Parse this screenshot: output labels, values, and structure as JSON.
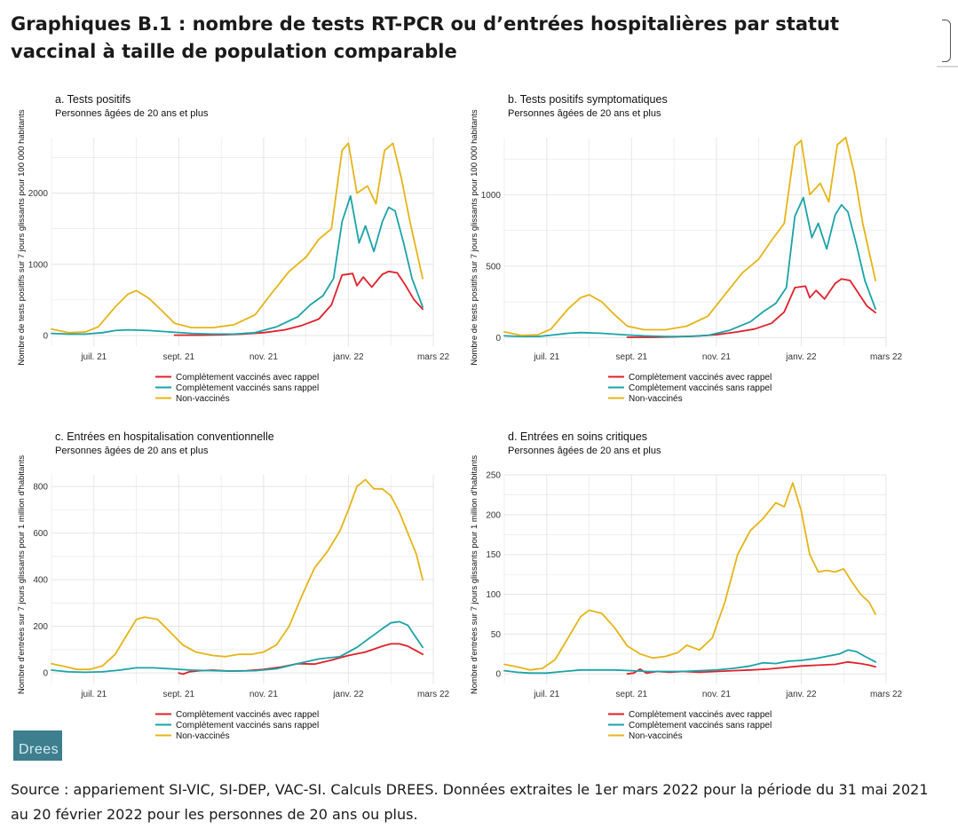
{
  "document": {
    "title": "Graphiques B.1 : nombre de tests RT-PCR ou d’entrées hospitalières par statut vaccinal à taille de population comparable",
    "source": "Source : appariement SI-VIC, SI-DEP, VAC-SI. Calculs DREES. Données extraites le 1er mars 2022 pour la période du 31 mai 2021 au 20 février 2022 pour les personnes de 20 ans ou plus.",
    "logo_text": "Drees"
  },
  "colors": {
    "rappel": "#e0202a",
    "sans_rappel": "#1aa3a8",
    "non_vaccines": "#e6b418",
    "grid": "#e5e5e5"
  },
  "chart_data": [
    {
      "id": "a",
      "type": "line",
      "title": "a. Tests positifs",
      "subtitle": "Personnes âgées de 20 ans et plus",
      "ylabel": "Nombre de tests positifs sur 7 jours glissants pour 100 000 habitants",
      "x_ticks": [
        "juil. 21",
        "sept. 21",
        "nov. 21",
        "janv. 22",
        "mars 22"
      ],
      "y_ticks": [
        0,
        1000,
        2000
      ],
      "xlim": [
        0,
        9
      ],
      "ylim": [
        -150,
        2780
      ],
      "legend": [
        "Complètement vaccinés avec rappel",
        "Complètement vaccinés sans rappel",
        "Non-vaccinés"
      ],
      "legend_position": "bottom",
      "series": [
        {
          "name": "Complètement vaccinés avec rappel",
          "color_key": "rappel",
          "x": [
            2.9,
            3.5,
            4.0,
            4.5,
            5.0,
            5.5,
            5.9,
            6.3,
            6.6,
            6.85,
            7.1,
            7.2,
            7.35,
            7.55,
            7.8,
            7.95,
            8.15,
            8.35,
            8.55,
            8.75
          ],
          "y": [
            5,
            5,
            10,
            20,
            40,
            80,
            140,
            230,
            430,
            850,
            870,
            700,
            820,
            680,
            860,
            900,
            880,
            700,
            500,
            370
          ]
        },
        {
          "name": "Complètement vaccinés sans rappel",
          "color_key": "sans_rappel",
          "x": [
            0.0,
            0.4,
            0.8,
            1.2,
            1.5,
            1.8,
            2.3,
            2.8,
            3.3,
            3.8,
            4.3,
            4.8,
            5.3,
            5.8,
            6.1,
            6.4,
            6.65,
            6.85,
            7.05,
            7.25,
            7.4,
            7.6,
            7.8,
            7.95,
            8.1,
            8.3,
            8.5,
            8.75
          ],
          "y": [
            30,
            20,
            20,
            40,
            70,
            80,
            70,
            50,
            30,
            20,
            20,
            40,
            120,
            260,
            430,
            560,
            800,
            1600,
            1960,
            1300,
            1540,
            1180,
            1600,
            1800,
            1750,
            1300,
            800,
            400
          ]
        },
        {
          "name": "Non-vaccinés",
          "color_key": "non_vaccines",
          "x": [
            0.0,
            0.4,
            0.8,
            1.1,
            1.5,
            1.8,
            2.0,
            2.3,
            2.6,
            2.9,
            3.3,
            3.8,
            4.3,
            4.8,
            5.2,
            5.6,
            6.0,
            6.3,
            6.6,
            6.85,
            7.0,
            7.2,
            7.45,
            7.65,
            7.85,
            8.05,
            8.25,
            8.45,
            8.75
          ],
          "y": [
            90,
            40,
            50,
            120,
            400,
            580,
            630,
            520,
            350,
            170,
            110,
            110,
            150,
            290,
            600,
            900,
            1100,
            1350,
            1500,
            2600,
            2700,
            2000,
            2100,
            1850,
            2600,
            2700,
            2200,
            1600,
            800
          ]
        }
      ]
    },
    {
      "id": "b",
      "type": "line",
      "title": "b. Tests positifs symptomatiques",
      "subtitle": "Personnes âgées de 20 ans et plus",
      "ylabel": "Nombre de tests positifs sur 7 jours glissants pour 100 000 habitants",
      "x_ticks": [
        "juil. 21",
        "sept. 21",
        "nov. 21",
        "janv. 22",
        "mars 22"
      ],
      "y_ticks": [
        0,
        500,
        1000
      ],
      "xlim": [
        0,
        9
      ],
      "ylim": [
        -60,
        1400
      ],
      "legend": [
        "Complètement vaccinés avec rappel",
        "Complètement vaccinés sans rappel",
        "Non-vaccinés"
      ],
      "legend_position": "bottom",
      "series": [
        {
          "name": "Complètement vaccinés avec rappel",
          "color_key": "rappel",
          "x": [
            2.9,
            3.5,
            4.0,
            4.5,
            5.0,
            5.5,
            5.9,
            6.3,
            6.6,
            6.85,
            7.1,
            7.2,
            7.35,
            7.55,
            7.8,
            7.95,
            8.15,
            8.35,
            8.55,
            8.75
          ],
          "y": [
            2,
            2,
            5,
            10,
            20,
            40,
            60,
            100,
            180,
            350,
            360,
            280,
            330,
            270,
            380,
            410,
            400,
            310,
            220,
            175
          ]
        },
        {
          "name": "Complètement vaccinés sans rappel",
          "color_key": "sans_rappel",
          "x": [
            0.0,
            0.4,
            0.8,
            1.2,
            1.5,
            1.8,
            2.3,
            2.8,
            3.3,
            3.8,
            4.3,
            4.8,
            5.3,
            5.8,
            6.1,
            6.4,
            6.65,
            6.85,
            7.05,
            7.25,
            7.4,
            7.6,
            7.8,
            7.95,
            8.1,
            8.3,
            8.5,
            8.75
          ],
          "y": [
            12,
            8,
            8,
            20,
            30,
            35,
            30,
            20,
            12,
            8,
            8,
            15,
            50,
            110,
            180,
            240,
            350,
            850,
            980,
            700,
            800,
            620,
            860,
            930,
            880,
            650,
            400,
            200
          ]
        },
        {
          "name": "Non-vaccinés",
          "color_key": "non_vaccines",
          "x": [
            0.0,
            0.4,
            0.8,
            1.1,
            1.5,
            1.8,
            2.0,
            2.3,
            2.6,
            2.9,
            3.3,
            3.8,
            4.3,
            4.8,
            5.2,
            5.6,
            6.0,
            6.3,
            6.6,
            6.85,
            7.0,
            7.2,
            7.45,
            7.65,
            7.85,
            8.05,
            8.25,
            8.45,
            8.75
          ],
          "y": [
            40,
            15,
            20,
            60,
            200,
            280,
            300,
            250,
            160,
            80,
            55,
            55,
            80,
            150,
            300,
            450,
            550,
            680,
            800,
            1340,
            1380,
            1000,
            1080,
            950,
            1350,
            1400,
            1150,
            800,
            400
          ]
        }
      ]
    },
    {
      "id": "c",
      "type": "line",
      "title": "c. Entrées en hospitalisation conventionnelle",
      "subtitle": "Personnes âgées de 20 ans et plus",
      "ylabel": "Nombre d'entrées sur 7 jours glissants pour 1 million d'habitants",
      "x_ticks": [
        "juil. 21",
        "sept. 21",
        "nov. 21",
        "janv. 22",
        "mars 22"
      ],
      "y_ticks": [
        0,
        200,
        400,
        600,
        800
      ],
      "xlim": [
        0,
        9
      ],
      "ylim": [
        -45,
        850
      ],
      "legend": [
        "Complètement vaccinés avec rappel",
        "Complètement vaccinés sans rappel",
        "Non-vaccinés"
      ],
      "legend_position": "bottom",
      "series": [
        {
          "name": "Complètement vaccinés avec rappel",
          "color_key": "rappel",
          "x": [
            3.0,
            3.1,
            3.25,
            3.5,
            3.8,
            4.2,
            4.6,
            5.0,
            5.4,
            5.8,
            6.2,
            6.6,
            7.0,
            7.4,
            7.8,
            8.0,
            8.2,
            8.4,
            8.55,
            8.75
          ],
          "y": [
            0,
            -5,
            5,
            10,
            12,
            8,
            10,
            15,
            25,
            40,
            38,
            55,
            75,
            90,
            115,
            125,
            125,
            115,
            100,
            80
          ]
        },
        {
          "name": "Complètement vaccinés sans rappel",
          "color_key": "sans_rappel",
          "x": [
            0.0,
            0.4,
            0.8,
            1.2,
            1.6,
            2.0,
            2.4,
            2.8,
            3.3,
            3.8,
            4.3,
            4.8,
            5.3,
            5.8,
            6.3,
            6.8,
            7.2,
            7.5,
            7.8,
            8.0,
            8.2,
            8.4,
            8.6,
            8.75
          ],
          "y": [
            12,
            5,
            3,
            5,
            12,
            22,
            22,
            18,
            12,
            10,
            8,
            10,
            18,
            40,
            60,
            70,
            110,
            150,
            190,
            215,
            220,
            205,
            150,
            110
          ]
        },
        {
          "name": "Non-vaccinés",
          "color_key": "non_vaccines",
          "x": [
            0.0,
            0.3,
            0.6,
            0.9,
            1.2,
            1.5,
            1.8,
            2.0,
            2.2,
            2.5,
            2.8,
            3.1,
            3.4,
            3.8,
            4.1,
            4.4,
            4.7,
            5.0,
            5.3,
            5.6,
            5.9,
            6.2,
            6.5,
            6.8,
            7.0,
            7.2,
            7.4,
            7.6,
            7.8,
            8.0,
            8.2,
            8.4,
            8.6,
            8.75
          ],
          "y": [
            40,
            28,
            15,
            15,
            30,
            80,
            170,
            230,
            240,
            230,
            175,
            120,
            90,
            75,
            70,
            80,
            80,
            90,
            120,
            200,
            330,
            450,
            520,
            610,
            700,
            800,
            830,
            790,
            790,
            760,
            690,
            600,
            510,
            400
          ]
        }
      ]
    },
    {
      "id": "d",
      "type": "line",
      "title": "d. Entrées en soins critiques",
      "subtitle": "Personnes âgées de 20 ans et plus",
      "ylabel": "Nombre d'entrées sur 7 jours glissants pour 1 million d'habitants",
      "x_ticks": [
        "juil. 21",
        "sept. 21",
        "nov. 21",
        "janv. 22",
        "mars 22"
      ],
      "y_ticks": [
        0,
        50,
        100,
        150,
        200,
        250
      ],
      "xlim": [
        0,
        9
      ],
      "ylim": [
        -12,
        250
      ],
      "legend": [
        "Complètement vaccinés avec rappel",
        "Complètement vaccinés sans rappel",
        "Non-vaccinés"
      ],
      "legend_position": "bottom",
      "series": [
        {
          "name": "Complètement vaccinés avec rappel",
          "color_key": "rappel",
          "x": [
            2.9,
            3.05,
            3.2,
            3.35,
            3.6,
            3.9,
            4.2,
            4.6,
            5.0,
            5.4,
            5.8,
            6.2,
            6.6,
            7.0,
            7.4,
            7.8,
            8.1,
            8.4,
            8.6,
            8.75
          ],
          "y": [
            0,
            1,
            6,
            1,
            3,
            2,
            3,
            2,
            3,
            4,
            5,
            6,
            8,
            10,
            11,
            12,
            15,
            13,
            11,
            9
          ]
        },
        {
          "name": "Complètement vaccinés sans rappel",
          "color_key": "sans_rappel",
          "x": [
            0.0,
            0.3,
            0.6,
            1.0,
            1.4,
            1.8,
            2.2,
            2.6,
            3.0,
            3.4,
            3.8,
            4.2,
            4.6,
            5.0,
            5.4,
            5.8,
            6.1,
            6.4,
            6.7,
            7.0,
            7.3,
            7.6,
            7.9,
            8.1,
            8.3,
            8.5,
            8.75
          ],
          "y": [
            4,
            2,
            1,
            1,
            3,
            5,
            5,
            5,
            4,
            3,
            3,
            3,
            4,
            5,
            7,
            10,
            14,
            13,
            16,
            17,
            19,
            22,
            25,
            30,
            28,
            22,
            15
          ]
        },
        {
          "name": "Non-vaccinés",
          "color_key": "non_vaccines",
          "x": [
            0.0,
            0.3,
            0.6,
            0.9,
            1.2,
            1.5,
            1.8,
            2.0,
            2.3,
            2.6,
            2.9,
            3.2,
            3.5,
            3.8,
            4.1,
            4.3,
            4.6,
            4.9,
            5.2,
            5.5,
            5.8,
            6.1,
            6.4,
            6.6,
            6.8,
            7.0,
            7.2,
            7.4,
            7.6,
            7.8,
            8.0,
            8.2,
            8.4,
            8.6,
            8.75
          ],
          "y": [
            12,
            9,
            5,
            7,
            18,
            45,
            72,
            80,
            76,
            58,
            35,
            25,
            20,
            22,
            27,
            36,
            30,
            45,
            90,
            150,
            180,
            195,
            215,
            210,
            240,
            205,
            150,
            128,
            130,
            128,
            132,
            115,
            100,
            90,
            75
          ]
        }
      ]
    }
  ]
}
